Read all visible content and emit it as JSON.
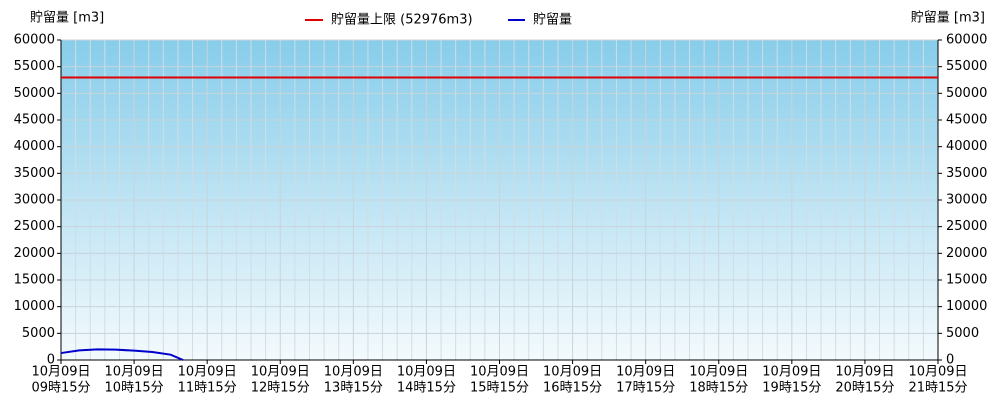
{
  "chart_data": {
    "type": "line",
    "y_label": "貯留量 [m3]",
    "y2_label": "貯留量 [m3]",
    "threshold": {
      "name": "貯留量上限 (52976m3)",
      "value": 52976,
      "color": "#e00000"
    },
    "x": [
      9.25,
      9.5,
      9.75,
      10.0,
      10.25,
      10.5,
      10.75,
      10.92
    ],
    "series": [
      {
        "name": "貯留量",
        "color": "#0000cc",
        "values": [
          1300,
          1800,
          2000,
          1950,
          1750,
          1500,
          1000,
          0
        ]
      }
    ],
    "xlim": [
      9.25,
      21.25
    ],
    "xticks": [
      {
        "value": 9.25,
        "label": [
          "10月09日",
          "09時15分"
        ]
      },
      {
        "value": 10.25,
        "label": [
          "10月09日",
          "10時15分"
        ]
      },
      {
        "value": 11.25,
        "label": [
          "10月09日",
          "11時15分"
        ]
      },
      {
        "value": 12.25,
        "label": [
          "10月09日",
          "12時15分"
        ]
      },
      {
        "value": 13.25,
        "label": [
          "10月09日",
          "13時15分"
        ]
      },
      {
        "value": 14.25,
        "label": [
          "10月09日",
          "14時15分"
        ]
      },
      {
        "value": 15.25,
        "label": [
          "10月09日",
          "15時15分"
        ]
      },
      {
        "value": 16.25,
        "label": [
          "10月09日",
          "16時15分"
        ]
      },
      {
        "value": 17.25,
        "label": [
          "10月09日",
          "17時15分"
        ]
      },
      {
        "value": 18.25,
        "label": [
          "10月09日",
          "18時15分"
        ]
      },
      {
        "value": 19.25,
        "label": [
          "10月09日",
          "19時15分"
        ]
      },
      {
        "value": 20.25,
        "label": [
          "10月09日",
          "20時15分"
        ]
      },
      {
        "value": 21.25,
        "label": [
          "10月09日",
          "21時15分"
        ]
      }
    ],
    "ylim": [
      0,
      60000
    ],
    "yticks": [
      0,
      5000,
      10000,
      15000,
      20000,
      25000,
      30000,
      35000,
      40000,
      45000,
      50000,
      55000,
      60000
    ],
    "y2lim": [
      0,
      60000
    ],
    "y2ticks": [
      0,
      5000,
      10000,
      15000,
      20000,
      25000,
      30000,
      35000,
      40000,
      45000,
      50000,
      55000,
      60000
    ],
    "grid": true
  }
}
